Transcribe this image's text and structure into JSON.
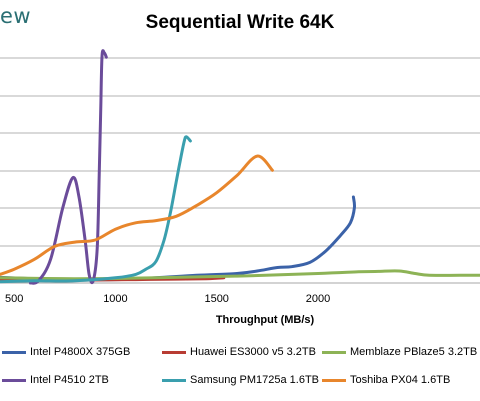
{
  "header": {
    "brand_fragment": "ew"
  },
  "chart_data": {
    "type": "line",
    "title": "Sequential Write 64K",
    "xlabel": "Throughput (MB/s)",
    "ylabel": "",
    "xlim": [
      430,
      2800
    ],
    "ylim": [
      0,
      5.3
    ],
    "xticks": [
      500,
      1000,
      1500,
      2000
    ],
    "grid": true,
    "legend_position": "bottom",
    "series": [
      {
        "name": "Intel P4800X 375GB",
        "color": "#3b62a8",
        "x": [
          430,
          600,
          800,
          1000,
          1200,
          1400,
          1600,
          1700,
          1800,
          1870,
          1960,
          2040,
          2110,
          2160,
          2180,
          2175
        ],
        "y": [
          0.13,
          0.1,
          0.08,
          0.08,
          0.12,
          0.18,
          0.22,
          0.28,
          0.36,
          0.38,
          0.48,
          0.75,
          1.1,
          1.4,
          1.75,
          2.0
        ]
      },
      {
        "name": "Huawei ES3000 v5 3.2TB",
        "color": "#b83c33",
        "x": [
          430,
          700,
          900,
          1100,
          1300,
          1450,
          1535
        ],
        "y": [
          0.08,
          0.07,
          0.07,
          0.08,
          0.09,
          0.1,
          0.12
        ]
      },
      {
        "name": "Memblaze PBlaze5 3.2TB",
        "color": "#8db356",
        "x": [
          430,
          800,
          1200,
          1600,
          2000,
          2200,
          2300,
          2400,
          2480,
          2550,
          2700,
          2800
        ],
        "y": [
          0.12,
          0.1,
          0.12,
          0.16,
          0.22,
          0.26,
          0.27,
          0.28,
          0.22,
          0.18,
          0.18,
          0.18
        ]
      },
      {
        "name": "Intel P4510 2TB",
        "color": "#6b4c9a",
        "x": [
          580,
          620,
          680,
          740,
          790,
          820,
          850,
          870,
          890,
          910,
          920,
          928,
          934,
          945,
          955
        ],
        "y": [
          0.0,
          0.05,
          0.55,
          1.75,
          2.45,
          2.0,
          1.0,
          0.2,
          0.05,
          0.8,
          2.5,
          4.2,
          5.3,
          5.35,
          5.25
        ]
      },
      {
        "name": "Samsung PM1725a 1.6TB",
        "color": "#3a9fae",
        "x": [
          430,
          600,
          800,
          1000,
          1100,
          1150,
          1200,
          1240,
          1270,
          1300,
          1320,
          1340,
          1350,
          1370
        ],
        "y": [
          0.03,
          0.05,
          0.05,
          0.12,
          0.2,
          0.32,
          0.5,
          1.0,
          1.6,
          2.35,
          2.85,
          3.3,
          3.4,
          3.3
        ]
      },
      {
        "name": "Toshiba PX04 1.6TB",
        "color": "#e8862c",
        "x": [
          430,
          500,
          600,
          700,
          800,
          900,
          1000,
          1100,
          1200,
          1300,
          1400,
          1500,
          1600,
          1700,
          1775
        ],
        "y": [
          0.2,
          0.32,
          0.55,
          0.85,
          0.95,
          1.0,
          1.25,
          1.4,
          1.45,
          1.55,
          1.8,
          2.1,
          2.5,
          2.95,
          2.62
        ]
      }
    ]
  }
}
